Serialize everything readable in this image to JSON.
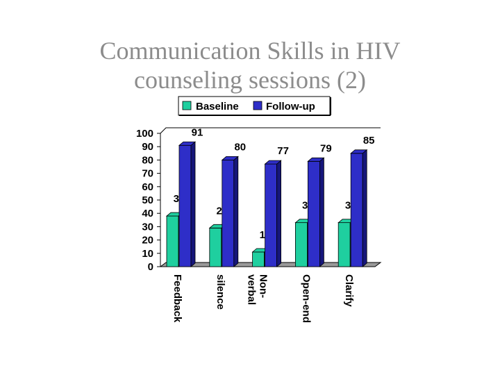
{
  "title": {
    "line1": "Communication Skills in  HIV",
    "line2": "counseling sessions (2)"
  },
  "colors": {
    "baseline": "#1fcf9f",
    "baseline_dark": "#128a68",
    "followup": "#2e2ec8",
    "followup_dark": "#16167a",
    "floor": "#9a9a9a"
  },
  "chart_data": {
    "type": "bar",
    "title": "",
    "xlabel": "",
    "ylabel": "",
    "categories": [
      "Feedback",
      "silence",
      "Non-verbal",
      "Open-end",
      "Clarify"
    ],
    "category_lines": [
      [
        "Feedback"
      ],
      [
        "silence"
      ],
      [
        "Non-",
        "verbal"
      ],
      [
        "Open-end"
      ],
      [
        "Clarify"
      ]
    ],
    "series": [
      {
        "name": "Baseline",
        "values": [
          38,
          29,
          11,
          33,
          33
        ]
      },
      {
        "name": "Follow-up",
        "values": [
          91,
          80,
          77,
          79,
          85
        ]
      }
    ],
    "ylim": [
      0,
      100
    ],
    "yticks": [
      0,
      10,
      20,
      30,
      40,
      50,
      60,
      70,
      80,
      90,
      100
    ],
    "grid": false,
    "legend": "top",
    "three_d": true,
    "category_label_orientation": "rotated-90-clockwise"
  }
}
